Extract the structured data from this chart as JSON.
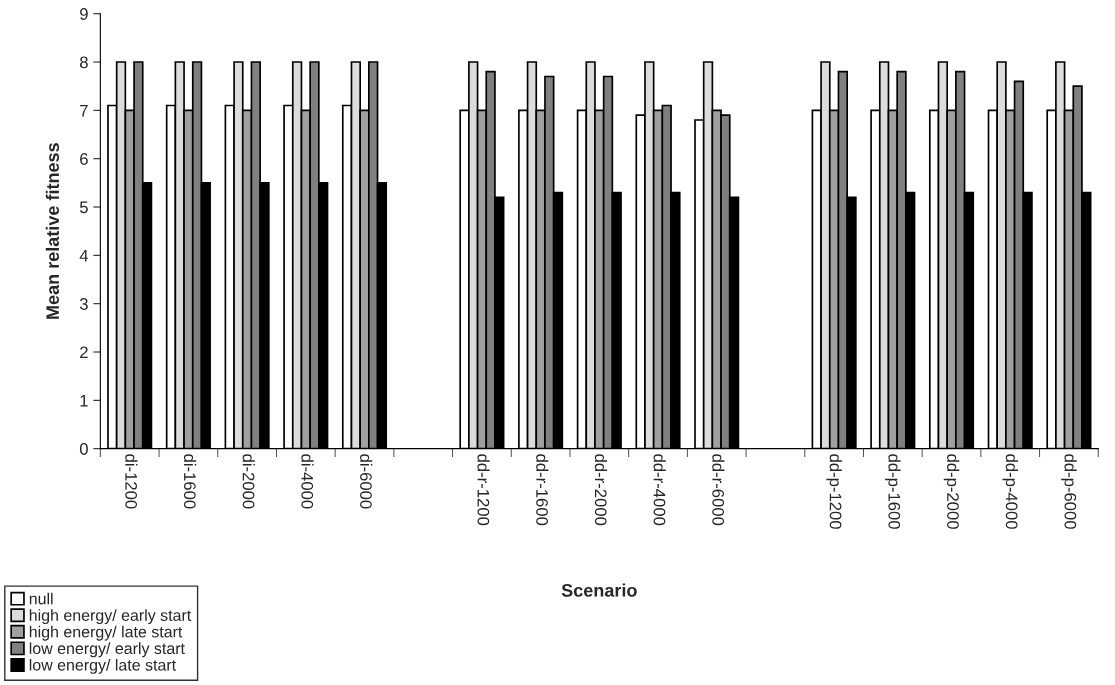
{
  "chart_data": {
    "type": "bar",
    "xlabel": "Scenario",
    "ylabel": "Mean relative fitness",
    "categories": [
      "di-1200",
      "di-1600",
      "di-2000",
      "di-4000",
      "di-6000",
      null,
      "dd-r-1200",
      "dd-r-1600",
      "dd-r-2000",
      "dd-r-4000",
      "dd-r-6000",
      null,
      "dd-p-1200",
      "dd-p-1600",
      "dd-p-2000",
      "dd-p-4000",
      "dd-p-6000"
    ],
    "series": [
      {
        "name": "null",
        "color": "#ffffff",
        "values": [
          7.1,
          7.1,
          7.1,
          7.1,
          7.1,
          null,
          7.0,
          7.0,
          7.0,
          6.9,
          6.8,
          null,
          7.0,
          7.0,
          7.0,
          7.0,
          7.0
        ]
      },
      {
        "name": "high energy/ early start",
        "color": "#dcdcdc",
        "values": [
          8.0,
          8.0,
          8.0,
          8.0,
          8.0,
          null,
          8.0,
          8.0,
          8.0,
          8.0,
          8.0,
          null,
          8.0,
          8.0,
          8.0,
          8.0,
          8.0
        ]
      },
      {
        "name": "high energy/ late start",
        "color": "#a0a0a0",
        "values": [
          7.0,
          7.0,
          7.0,
          7.0,
          7.0,
          null,
          7.0,
          7.0,
          7.0,
          7.0,
          7.0,
          null,
          7.0,
          7.0,
          7.0,
          7.0,
          7.0
        ]
      },
      {
        "name": "low energy/ early start",
        "color": "#808080",
        "values": [
          8.0,
          8.0,
          8.0,
          8.0,
          8.0,
          null,
          7.8,
          7.7,
          7.7,
          7.1,
          6.9,
          null,
          7.8,
          7.8,
          7.8,
          7.6,
          7.5
        ]
      },
      {
        "name": "low energy/ late start",
        "color": "#000000",
        "values": [
          5.5,
          5.5,
          5.5,
          5.5,
          5.5,
          null,
          5.2,
          5.3,
          5.3,
          5.3,
          5.2,
          null,
          5.2,
          5.3,
          5.3,
          5.3,
          5.3
        ]
      }
    ],
    "ylim": [
      0,
      9
    ],
    "yticks": [
      0,
      1,
      2,
      3,
      4,
      5,
      6,
      7,
      8,
      9
    ],
    "grid": false,
    "legend": "bottom left"
  }
}
